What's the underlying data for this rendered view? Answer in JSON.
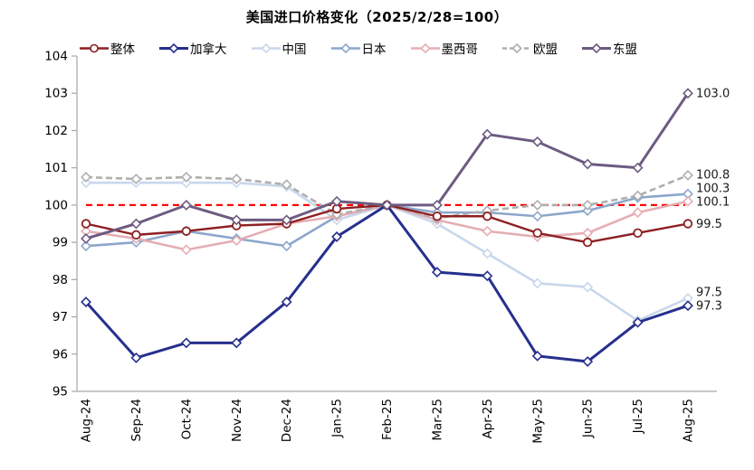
{
  "title": "美国进口价格变化（2025/2/28=100）",
  "chart_data": {
    "type": "line",
    "title": "美国进口价格变化（2025/2/28=100）",
    "xlabel": "",
    "ylabel": "",
    "ylim": [
      95,
      104
    ],
    "y_ticks": [
      95,
      96,
      97,
      98,
      99,
      100,
      101,
      102,
      103,
      104
    ],
    "grid": false,
    "legend_position": "top",
    "axis_color": "#a6a6a6",
    "categories": [
      "Aug-24",
      "Sep-24",
      "Oct-24",
      "Nov-24",
      "Dec-24",
      "Jan-25",
      "Feb-25",
      "Mar-25",
      "Apr-25",
      "May-25",
      "Jun-25",
      "Jul-25",
      "Aug-25"
    ],
    "reference_line": {
      "value": 100,
      "color": "#ff0000",
      "style": "dashed"
    },
    "series": [
      {
        "id": "china",
        "name": "中国",
        "color": "#c9d7eb",
        "marker": "diamond",
        "dash": null,
        "line_width": 2.6,
        "values": [
          100.6,
          100.6,
          100.6,
          100.6,
          100.5,
          99.6,
          100.0,
          99.5,
          98.7,
          97.9,
          97.8,
          96.9,
          97.5
        ],
        "end_label": "97.5"
      },
      {
        "id": "japan",
        "name": "日本",
        "color": "#8ca6cc",
        "marker": "diamond",
        "dash": null,
        "line_width": 2.6,
        "values": [
          98.9,
          99.0,
          99.3,
          99.1,
          98.9,
          99.7,
          100.0,
          99.8,
          99.8,
          99.7,
          99.85,
          100.2,
          100.3
        ],
        "end_label": "100.3"
      },
      {
        "id": "mexico",
        "name": "墨西哥",
        "color": "#e5aeb3",
        "marker": "diamond",
        "dash": null,
        "line_width": 2.6,
        "values": [
          99.3,
          99.1,
          98.8,
          99.05,
          99.5,
          99.7,
          100.0,
          99.6,
          99.3,
          99.15,
          99.25,
          99.8,
          100.1
        ],
        "end_label": "100.1"
      },
      {
        "id": "eu",
        "name": "欧盟",
        "color": "#afafaf",
        "marker": "diamond",
        "dash": "7 4",
        "line_width": 2.6,
        "values": [
          100.75,
          100.7,
          100.75,
          100.7,
          100.55,
          99.75,
          100.0,
          99.65,
          99.85,
          100.0,
          100.0,
          100.25,
          100.8
        ],
        "end_label": "100.8"
      },
      {
        "id": "overall",
        "name": "整体",
        "color": "#8e1f22",
        "marker": "circle",
        "dash": null,
        "line_width": 2.4,
        "values": [
          99.5,
          99.2,
          99.3,
          99.45,
          99.5,
          99.9,
          100.0,
          99.7,
          99.7,
          99.25,
          99.0,
          99.25,
          99.5
        ],
        "end_label": "99.5"
      },
      {
        "id": "canada",
        "name": "加拿大",
        "color": "#272f8d",
        "marker": "diamond",
        "dash": null,
        "line_width": 3,
        "values": [
          97.4,
          95.9,
          96.3,
          96.3,
          97.4,
          99.15,
          100.0,
          98.2,
          98.1,
          95.95,
          95.8,
          96.85,
          97.3
        ],
        "end_label": "97.3"
      },
      {
        "id": "asean",
        "name": "东盟",
        "color": "#6d5b80",
        "marker": "diamond",
        "dash": null,
        "line_width": 3,
        "values": [
          99.1,
          99.5,
          100.0,
          99.6,
          99.6,
          100.1,
          100.0,
          100.0,
          101.9,
          101.7,
          101.1,
          101.0,
          103.0
        ],
        "end_label": "103.0"
      }
    ],
    "legend_order": [
      "overall",
      "canada",
      "china",
      "japan",
      "mexico",
      "eu",
      "asean"
    ]
  }
}
